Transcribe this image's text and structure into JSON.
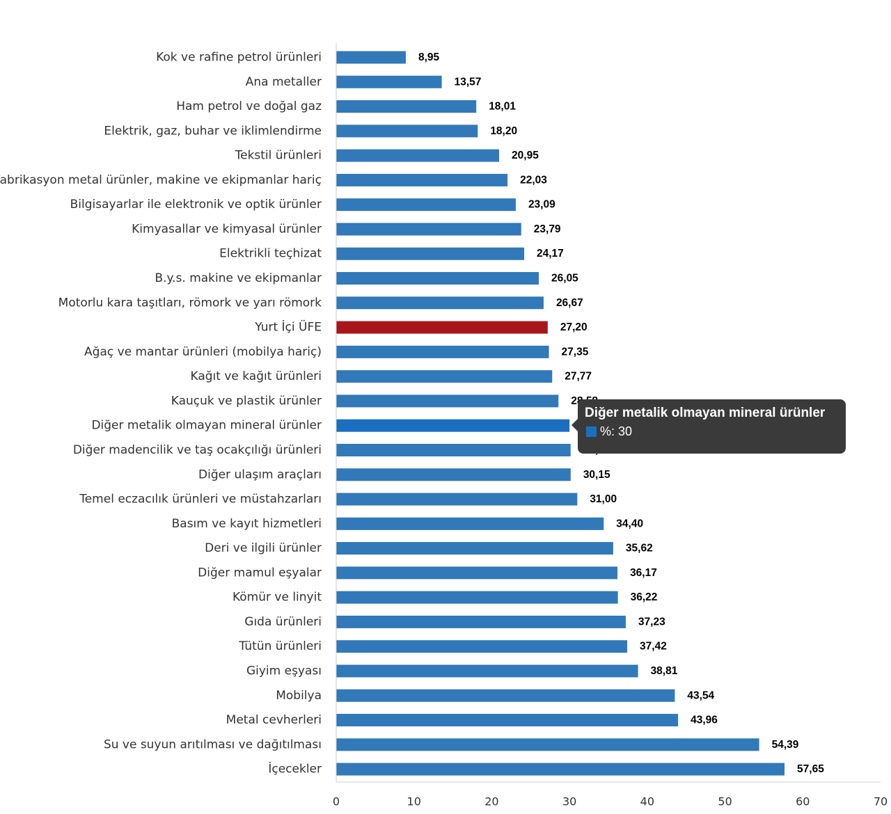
{
  "colors": {
    "bar": "#3179b8",
    "highlight": "#a8161c",
    "hover": "#1b6fc0",
    "axis": "#cccccc"
  },
  "chart_data": {
    "type": "bar",
    "orientation": "horizontal",
    "categories": [
      "Kok ve rafine petrol ürünleri",
      "Ana metaller",
      "Ham petrol ve doğal gaz",
      "Elektrik, gaz, buhar ve iklimlendirme",
      "Tekstil ürünleri",
      "Fabrikasyon metal ürünler, makine ve ekipmanlar hariç",
      "Bilgisayarlar ile elektronik ve optik ürünler",
      "Kimyasallar ve kimyasal ürünler",
      "Elektrikli teçhizat",
      "B.y.s. makine ve ekipmanlar",
      "Motorlu kara taşıtları, römork ve yarı römork",
      "Yurt İçi ÜFE",
      "Ağaç ve mantar ürünleri (mobilya hariç)",
      "Kağıt ve kağıt ürünleri",
      "Kauçuk ve plastik ürünler",
      "Diğer metalik olmayan mineral ürünler",
      "Diğer madencilik ve taş ocakçılığı ürünleri",
      "Diğer ulaşım araçları",
      "Temel eczacılık ürünleri ve müstahzarları",
      "Basım ve kayıt hizmetleri",
      "Deri ve ilgili ürünler",
      "Diğer mamul eşyalar",
      "Kömür ve linyit",
      "Gıda ürünleri",
      "Tütün ürünleri",
      "Giyim eşyası",
      "Mobilya",
      "Metal cevherleri",
      "Su ve suyun arıtılması ve dağıtılması",
      "İçecekler"
    ],
    "values": [
      8.95,
      13.57,
      18.01,
      18.2,
      20.95,
      22.03,
      23.09,
      23.79,
      24.17,
      26.05,
      26.67,
      27.2,
      27.35,
      27.77,
      28.58,
      30.0,
      30.14,
      30.15,
      31.0,
      34.4,
      35.62,
      36.17,
      36.22,
      37.23,
      37.42,
      38.81,
      43.54,
      43.96,
      54.39,
      57.65
    ],
    "value_labels": [
      "8,95",
      "13,57",
      "18,01",
      "18,20",
      "20,95",
      "22,03",
      "23,09",
      "23,79",
      "24,17",
      "26,05",
      "26,67",
      "27,20",
      "27,35",
      "27,77",
      "28,58",
      "30,00",
      "30,14",
      "30,15",
      "31,00",
      "34,40",
      "35,62",
      "36,17",
      "36,22",
      "37,23",
      "37,42",
      "38,81",
      "43,54",
      "43,96",
      "54,39",
      "57,65"
    ],
    "highlight_index": 11,
    "hover_index": 15,
    "xlim": [
      0,
      70
    ],
    "x_ticks": [
      "0",
      "10",
      "20",
      "30",
      "40",
      "50",
      "60",
      "70"
    ],
    "x_tick_values": [
      0,
      10,
      20,
      30,
      40,
      50,
      60,
      70
    ],
    "grid": false,
    "legend": "none"
  },
  "tooltip": {
    "title": "Diğer metalik olmayan mineral ürünler",
    "value_text": "%: 30"
  }
}
